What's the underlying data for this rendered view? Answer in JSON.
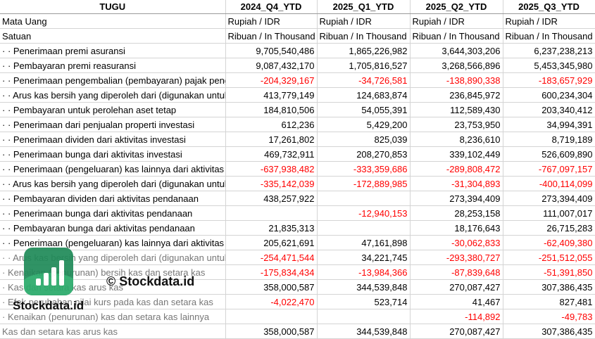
{
  "header": [
    "TUGU",
    "2024_Q4_YTD",
    "2025_Q1_YTD",
    "2025_Q2_YTD",
    "2025_Q3_YTD"
  ],
  "rows": [
    {
      "label": "Mata Uang",
      "cells": [
        "Rupiah / IDR",
        "Rupiah / IDR",
        "Rupiah / IDR",
        "Rupiah / IDR"
      ],
      "align": "left"
    },
    {
      "label": "Satuan",
      "cells": [
        "Ribuan / In Thousand",
        "Ribuan / In Thousand",
        "Ribuan / In Thousand",
        "Ribuan / In Thousand"
      ],
      "align": "left"
    },
    {
      "label": "· · Penerimaan premi asuransi",
      "cells": [
        "9,705,540,486",
        "1,865,226,982",
        "3,644,303,206",
        "6,237,238,213"
      ]
    },
    {
      "label": "· · Pembayaran premi reasuransi",
      "cells": [
        "9,087,432,170",
        "1,705,816,527",
        "3,268,566,896",
        "5,453,345,980"
      ]
    },
    {
      "label": "· · Penerimaan pengembalian (pembayaran) pajak penghasilan",
      "cells": [
        "-204,329,167",
        "-34,726,581",
        "-138,890,338",
        "-183,657,929"
      ]
    },
    {
      "label": "· · Arus kas bersih yang diperoleh dari (digunakan untuk) aktivitas operasi",
      "cells": [
        "413,779,149",
        "124,683,874",
        "236,845,972",
        "600,234,304"
      ]
    },
    {
      "label": "· · Pembayaran untuk perolehan aset tetap",
      "cells": [
        "184,810,506",
        "54,055,391",
        "112,589,430",
        "203,340,412"
      ]
    },
    {
      "label": "· · Penerimaan dari penjualan properti investasi",
      "cells": [
        "612,236",
        "5,429,200",
        "23,753,950",
        "34,994,391"
      ]
    },
    {
      "label": "· · Penerimaan dividen dari aktivitas investasi",
      "cells": [
        "17,261,802",
        "825,039",
        "8,236,610",
        "8,719,189"
      ]
    },
    {
      "label": "· · Penerimaan bunga dari aktivitas investasi",
      "cells": [
        "469,732,911",
        "208,270,853",
        "339,102,449",
        "526,609,890"
      ]
    },
    {
      "label": "· · Penerimaan (pengeluaran) kas lainnya dari aktivitas investasi",
      "cells": [
        "-637,938,482",
        "-333,359,686",
        "-289,808,472",
        "-767,097,157"
      ]
    },
    {
      "label": "· · Arus kas bersih yang diperoleh dari (digunakan untuk) aktivitas investasi",
      "cells": [
        "-335,142,039",
        "-172,889,985",
        "-31,304,893",
        "-400,114,099"
      ]
    },
    {
      "label": "· · Pembayaran dividen dari aktivitas pendanaan",
      "cells": [
        "438,257,922",
        "",
        "273,394,409",
        "273,394,409"
      ]
    },
    {
      "label": "· · Penerimaan bunga dari aktivitas pendanaan",
      "cells": [
        "",
        "-12,940,153",
        "28,253,158",
        "111,007,017"
      ]
    },
    {
      "label": "· · Pembayaran bunga dari aktivitas pendanaan",
      "cells": [
        "21,835,313",
        "",
        "18,176,643",
        "26,715,283"
      ]
    },
    {
      "label": "· · Penerimaan (pengeluaran) kas lainnya dari aktivitas pendanaan",
      "cells": [
        "205,621,691",
        "47,161,898",
        "-30,062,833",
        "-62,409,380"
      ]
    },
    {
      "label": "· · Arus kas bersih yang diperoleh dari (digunakan untuk) aktivitas pendanaan",
      "cells": [
        "-254,471,544",
        "34,221,745",
        "-293,380,727",
        "-251,512,055"
      ],
      "faded": true
    },
    {
      "label": "· Kenaikan (penurunan) bersih kas dan setara kas",
      "cells": [
        "-175,834,434",
        "-13,984,366",
        "-87,839,648",
        "-51,391,850"
      ],
      "faded": true
    },
    {
      "label": "· Kas dan setara kas arus kas",
      "cells": [
        "358,000,587",
        "344,539,848",
        "270,087,427",
        "307,386,435"
      ],
      "faded": true
    },
    {
      "label": "· Efek perubahan nilai kurs pada kas dan setara kas",
      "cells": [
        "-4,022,470",
        "523,714",
        "41,467",
        "827,481"
      ],
      "faded": true
    },
    {
      "label": "· Kenaikan (penurunan) kas dan setara kas lainnya",
      "cells": [
        "",
        "",
        "-114,892",
        "-49,783"
      ],
      "faded": true
    },
    {
      "label": "Kas dan setara kas arus kas",
      "cells": [
        "358,000,587",
        "344,539,848",
        "270,087,427",
        "307,386,435"
      ],
      "faded": true
    }
  ],
  "watermark": {
    "logo_text": "Stockdata.id",
    "copyright": "© Stockdata.id"
  },
  "colors": {
    "negative": "#ff0000",
    "logo": "#1f8a58"
  }
}
